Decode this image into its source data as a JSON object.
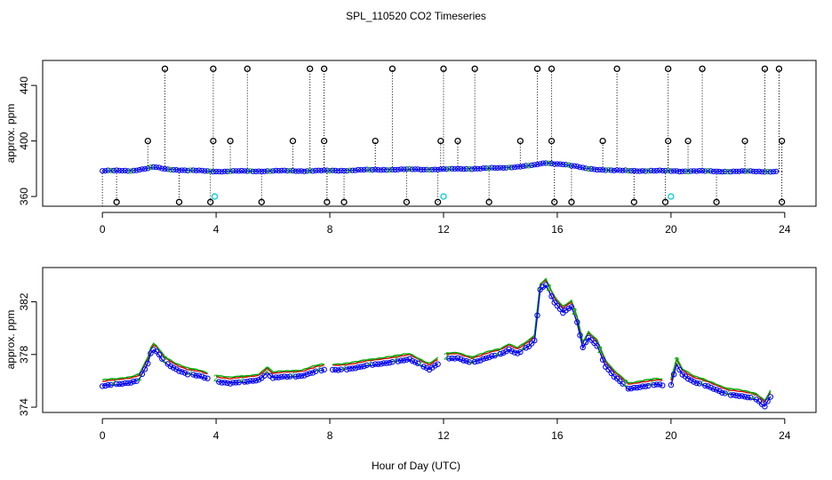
{
  "figure": {
    "title": "SPL_110520  CO2 Timeseries",
    "xlabel": "Hour of Day (UTC)"
  },
  "chart_data": [
    {
      "type": "scatter",
      "name": "top-panel",
      "ylabel": "approx. ppm",
      "xlim": [
        -2.1,
        25.1
      ],
      "ylim": [
        353,
        458
      ],
      "xticks": [
        0,
        4,
        8,
        12,
        16,
        20,
        24
      ],
      "xtick_labels": [
        "0",
        "4",
        "8",
        "12",
        "16",
        "20",
        "24"
      ],
      "yticks": [
        360,
        400,
        440
      ],
      "ytick_labels": [
        "360",
        "400",
        "440"
      ],
      "baseline": {
        "hours": [
          0,
          1,
          1.6,
          1.8,
          2.2,
          3,
          4,
          6,
          8,
          10,
          12,
          14,
          15.2,
          15.6,
          16.2,
          17,
          18,
          20,
          22,
          23.8
        ],
        "ppm": [
          378.5,
          378.6,
          380.2,
          381.2,
          379.8,
          378.8,
          378.1,
          378.4,
          378.6,
          379.4,
          379.6,
          380.5,
          382.5,
          384.2,
          383.3,
          380.2,
          378.7,
          378.4,
          378.1,
          378.0
        ]
      },
      "spikes_high": [
        2.2,
        3.9,
        5.1,
        7.3,
        7.8,
        10.2,
        12.0,
        13.1,
        15.3,
        15.8,
        18.1,
        19.9,
        21.1,
        23.3,
        23.8
      ],
      "spikes_high_value": 452,
      "spikes_mid": [
        1.6,
        3.9,
        4.5,
        6.7,
        7.8,
        9.6,
        11.9,
        12.5,
        14.7,
        15.8,
        17.6,
        19.9,
        20.6,
        22.6,
        23.9
      ],
      "spikes_mid_value": 400,
      "spikes_low": [
        0.5,
        2.7,
        3.8,
        5.6,
        7.9,
        8.5,
        10.7,
        11.8,
        13.6,
        15.9,
        16.5,
        18.7,
        19.8,
        21.6,
        23.9
      ],
      "spikes_low_value": 356,
      "cyan_points": [
        [
          3.95,
          360
        ],
        [
          12.0,
          360
        ],
        [
          20.0,
          360
        ]
      ]
    },
    {
      "type": "line",
      "name": "bottom-panel",
      "ylabel": "approx. ppm",
      "xlim": [
        -2.1,
        25.1
      ],
      "ylim": [
        373.6,
        384.6
      ],
      "xticks": [
        0,
        4,
        8,
        12,
        16,
        20,
        24
      ],
      "xtick_labels": [
        "0",
        "4",
        "8",
        "12",
        "16",
        "20",
        "24"
      ],
      "yticks": [
        374,
        378,
        382
      ],
      "ytick_labels": [
        "374",
        "378",
        "382"
      ],
      "series": [
        {
          "name": "1",
          "color": "#dd0000",
          "offset": 0.15
        },
        {
          "name": "2",
          "color": "#00aa00",
          "offset": 0.25
        },
        {
          "name": "3",
          "color": "#0000ee",
          "offset": -0.2
        }
      ],
      "gaps": [
        [
          3.8,
          4.0
        ],
        [
          7.8,
          8.0
        ],
        [
          11.8,
          12.0
        ],
        [
          19.8,
          20.0
        ]
      ],
      "hours": [
        0,
        0.5,
        1.0,
        1.3,
        1.6,
        1.75,
        1.9,
        2.2,
        2.6,
        3.0,
        3.5,
        3.8,
        4.0,
        4.5,
        5.0,
        5.5,
        5.8,
        6.0,
        6.5,
        7.0,
        7.5,
        7.8,
        8.0,
        9.0,
        10.0,
        10.5,
        10.8,
        11.0,
        11.5,
        11.8,
        12.0,
        12.5,
        13.0,
        13.5,
        14.0,
        14.3,
        14.6,
        15.0,
        15.2,
        15.4,
        15.6,
        15.9,
        16.2,
        16.5,
        16.7,
        16.9,
        17.1,
        17.4,
        17.7,
        18.0,
        18.5,
        19.0,
        19.5,
        19.8,
        20.0,
        20.2,
        20.4,
        20.8,
        21.5,
        22.0,
        22.5,
        23.0,
        23.3,
        23.6
      ]
    }
  ],
  "bottom_values": [
    375.8,
    375.9,
    376.1,
    376.3,
    377.5,
    378.6,
    378.4,
    377.6,
    377.1,
    376.7,
    376.5,
    376.3,
    376.2,
    376.0,
    376.1,
    376.3,
    376.8,
    376.4,
    376.5,
    376.6,
    376.9,
    377.0,
    377.0,
    377.2,
    377.6,
    377.7,
    377.8,
    377.6,
    377.1,
    377.5,
    377.8,
    377.9,
    377.6,
    377.9,
    378.2,
    378.6,
    378.3,
    378.8,
    379.2,
    383.1,
    383.5,
    382.2,
    381.4,
    381.8,
    380.6,
    378.7,
    379.5,
    378.9,
    377.3,
    376.5,
    375.6,
    375.8,
    375.9,
    375.8,
    375.9,
    377.5,
    376.7,
    376.1,
    375.6,
    375.2,
    375.0,
    374.8,
    374.3,
    375.4
  ]
}
